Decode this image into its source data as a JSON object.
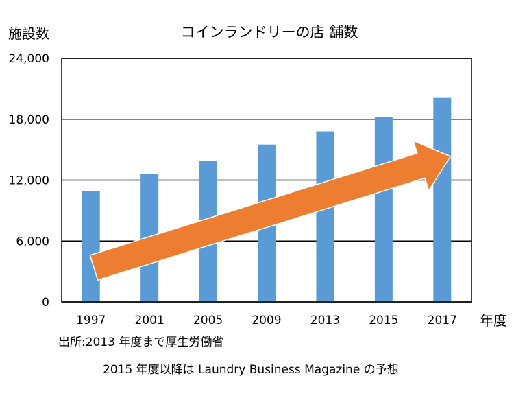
{
  "chart_data": {
    "type": "bar",
    "title": "コインランドリーの店 舗数",
    "ylabel": "施設数",
    "xlabel": "年度",
    "categories": [
      "1997",
      "2001",
      "2005",
      "2009",
      "2013",
      "2015",
      "2017"
    ],
    "values": [
      10900,
      12600,
      13900,
      15500,
      16800,
      18200,
      20100
    ],
    "ylim": [
      0,
      24000
    ],
    "yticks": [
      0,
      6000,
      12000,
      18000,
      24000
    ],
    "ytick_labels": [
      "0",
      "6,000",
      "12,000",
      "18,000",
      "24,000"
    ],
    "grid": true
  },
  "source": {
    "line1": "出所:2013 年度まで厚生労働省",
    "line2": "2015 年度以降は Laundry Business Magazine の予想"
  },
  "colors": {
    "bars": "#5B9BD5",
    "gridlines": "#000000",
    "arrow": "#ED7D31"
  }
}
